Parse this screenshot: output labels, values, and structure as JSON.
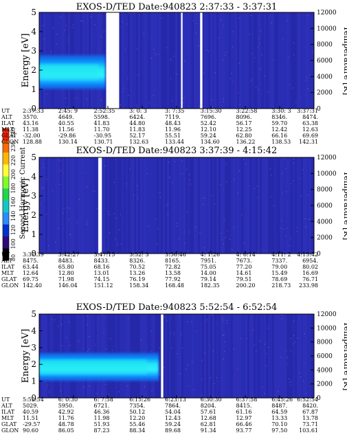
{
  "colorbar": {
    "label": "Second Harmonic Current",
    "ticks": [
      "240",
      "230",
      "220",
      "200",
      "180",
      "160",
      "140",
      "120",
      "100",
      "80"
    ],
    "colors": [
      "#ff2200",
      "#ff6a00",
      "#ffb800",
      "#ffff33",
      "#7fff2a",
      "#1fd84a",
      "#10c8c8",
      "#2a8cff",
      "#0030d0",
      "#2c0a7a",
      "#000000"
    ]
  },
  "panel_colors": {
    "background": "#2a2bb0",
    "band_low": "#0a8aff",
    "band_high": "#22e8f2",
    "speckle": "#e87fb0",
    "gap": "#ffffff"
  },
  "chart_data": [
    {
      "type": "heatmap",
      "title": "EXOS-D/TED   Date:940823   2:37:33 - 3:37:31",
      "ylabel": "Energy [eV]",
      "y2label": "Temperature [K]",
      "ylim": [
        0,
        5
      ],
      "y_ticks": [
        "0",
        "1",
        "2",
        "3",
        "4",
        "5"
      ],
      "y2lim": [
        0,
        12000
      ],
      "y2_ticks": [
        "0",
        "2000",
        "4000",
        "6000",
        "8000",
        "10000",
        "12000"
      ],
      "time_range": [
        "2:37:33",
        "3:37:31"
      ],
      "data_gaps": [
        [
          "2:52:10",
          "2:55:00"
        ],
        [
          "3:08:30",
          "3:08:50"
        ],
        [
          "3:12:40",
          "3:13:10"
        ]
      ],
      "band": {
        "energy_range": [
          1.0,
          2.8
        ],
        "core": [
          1.5,
          2.3
        ],
        "extent": [
          "2:37:33",
          "2:52:00"
        ]
      },
      "rows": [
        {
          "label": "UT",
          "values": [
            "2:37:33",
            "2:45: 9",
            "2:52:35",
            "3: 0: 3",
            "3: 7:35",
            "3:15:30",
            "3:22:58",
            "3:30: 3",
            "3:37:31"
          ]
        },
        {
          "label": "ALT",
          "values": [
            "3570.",
            "4649.",
            "5598.",
            "6424.",
            "7119.",
            "7696.",
            "8096.",
            "8346.",
            "8474."
          ]
        },
        {
          "label": "ILAT",
          "values": [
            "43.16",
            "40.55",
            "41.83",
            "44.80",
            "48.43",
            "52.42",
            "56.17",
            "59.70",
            "63.38"
          ]
        },
        {
          "label": "MLT",
          "values": [
            "11.38",
            "11.56",
            "11.70",
            "11.83",
            "11.96",
            "12.10",
            "12.25",
            "12.42",
            "12.63"
          ]
        },
        {
          "label": "GLAT",
          "values": [
            "-32.00",
            "-29.86",
            "-30.95",
            "52.17",
            "55.51",
            "59.24",
            "62.80",
            "66.16",
            "69.69"
          ]
        },
        {
          "label": "GLON",
          "values": [
            "128.88",
            "130.14",
            "130.71",
            "132.63",
            "133.44",
            "134.60",
            "136.22",
            "138.53",
            "142.31"
          ]
        }
      ]
    },
    {
      "type": "heatmap",
      "title": "EXOS-D/TED   Date:940823   3:37:39 - 4:15:42",
      "ylabel": "Energy [eV]",
      "y2label": "Temperature [K]",
      "ylim": [
        0,
        5
      ],
      "y_ticks": [
        "0",
        "1",
        "2",
        "3",
        "4",
        "5"
      ],
      "y2lim": [
        0,
        12000
      ],
      "y2_ticks": [
        "0",
        "2000",
        "4000",
        "6000",
        "8000",
        "10000",
        "12000"
      ],
      "time_range": [
        "3:37:39",
        "4:15:42"
      ],
      "data_gaps": [
        [
          "3:45:50",
          "3:46:20"
        ]
      ],
      "band": null,
      "rows": [
        {
          "label": "UT",
          "values": [
            "3:37:39",
            "3:42:27",
            "3:47:15",
            "3:52: 3",
            "3:56:46",
            "4: 1:26",
            "4: 6:14",
            "4:11: 2",
            "4:15:42"
          ]
        },
        {
          "label": "ALT",
          "values": [
            "8475.",
            "8483.",
            "8433.",
            "8326.",
            "8165.",
            "7951.",
            "7673.",
            "7337.",
            "6954."
          ]
        },
        {
          "label": "ILAT",
          "values": [
            "63.44",
            "65.80",
            "68.16",
            "70.52",
            "72.82",
            "75.05",
            "77.20",
            "79.00",
            "80.02"
          ]
        },
        {
          "label": "MLT",
          "values": [
            "12.64",
            "12.80",
            "13.01",
            "13.26",
            "13.58",
            "14.00",
            "14.61",
            "15.49",
            "16.69"
          ]
        },
        {
          "label": "GLAT",
          "values": [
            "69.75",
            "71.98",
            "74.15",
            "76.19",
            "77.92",
            "79.14",
            "79.51",
            "78.69",
            "76.71"
          ]
        },
        {
          "label": "GLON",
          "values": [
            "142.40",
            "146.04",
            "151.12",
            "158.34",
            "168.48",
            "182.35",
            "200.20",
            "218.73",
            "233.98"
          ]
        }
      ]
    },
    {
      "type": "heatmap",
      "title": "EXOS-D/TED   Date:940823   5:52:54 - 6:52:54",
      "ylabel": "Energy [eV]",
      "y2label": "Temperature [K]",
      "ylim": [
        0,
        5
      ],
      "y_ticks": [
        "0",
        "1",
        "2",
        "3",
        "4",
        "5"
      ],
      "y2lim": [
        0,
        12000
      ],
      "y2_ticks": [
        "0",
        "2000",
        "4000",
        "6000",
        "8000",
        "10000",
        "12000"
      ],
      "time_range": [
        "5:52:54",
        "6:52:54"
      ],
      "data_gaps": [
        [
          "6:19:30",
          "6:20:00"
        ]
      ],
      "band": {
        "energy_range": [
          1.0,
          2.7
        ],
        "core": [
          1.4,
          2.3
        ],
        "extent": [
          "5:52:54",
          "6:19:00"
        ]
      },
      "rows": [
        {
          "label": "UT",
          "values": [
            "5:52:54",
            "6: 0:30",
            "6: 7:58",
            "6:15:26",
            "6:23:13",
            "6:30:30",
            "6:37:58",
            "6:45:26",
            "6:52:54"
          ]
        },
        {
          "label": "ALT",
          "values": [
            "5029.",
            "5950.",
            "6721.",
            "7354.",
            "7864.",
            "8204.",
            "8415.",
            "8487.",
            "8420."
          ]
        },
        {
          "label": "ILAT",
          "values": [
            "40.59",
            "42.92",
            "46.36",
            "50.12",
            "54.04",
            "57.61",
            "61.16",
            "64.59",
            "67.87"
          ]
        },
        {
          "label": "MLT",
          "values": [
            "11.51",
            "11.76",
            "11.98",
            "12.20",
            "12.43",
            "12.68",
            "12.97",
            "13.33",
            "13.78"
          ]
        },
        {
          "label": "GLAT",
          "values": [
            "-29.57",
            "48.78",
            "51.93",
            "55.46",
            "59.24",
            "62.81",
            "66.46",
            "70.10",
            "73.71"
          ]
        },
        {
          "label": "GLON",
          "values": [
            "90.60",
            "86.05",
            "87.23",
            "88.34",
            "89.68",
            "91.34",
            "93.77",
            "97.50",
            "103.61"
          ]
        }
      ]
    }
  ]
}
